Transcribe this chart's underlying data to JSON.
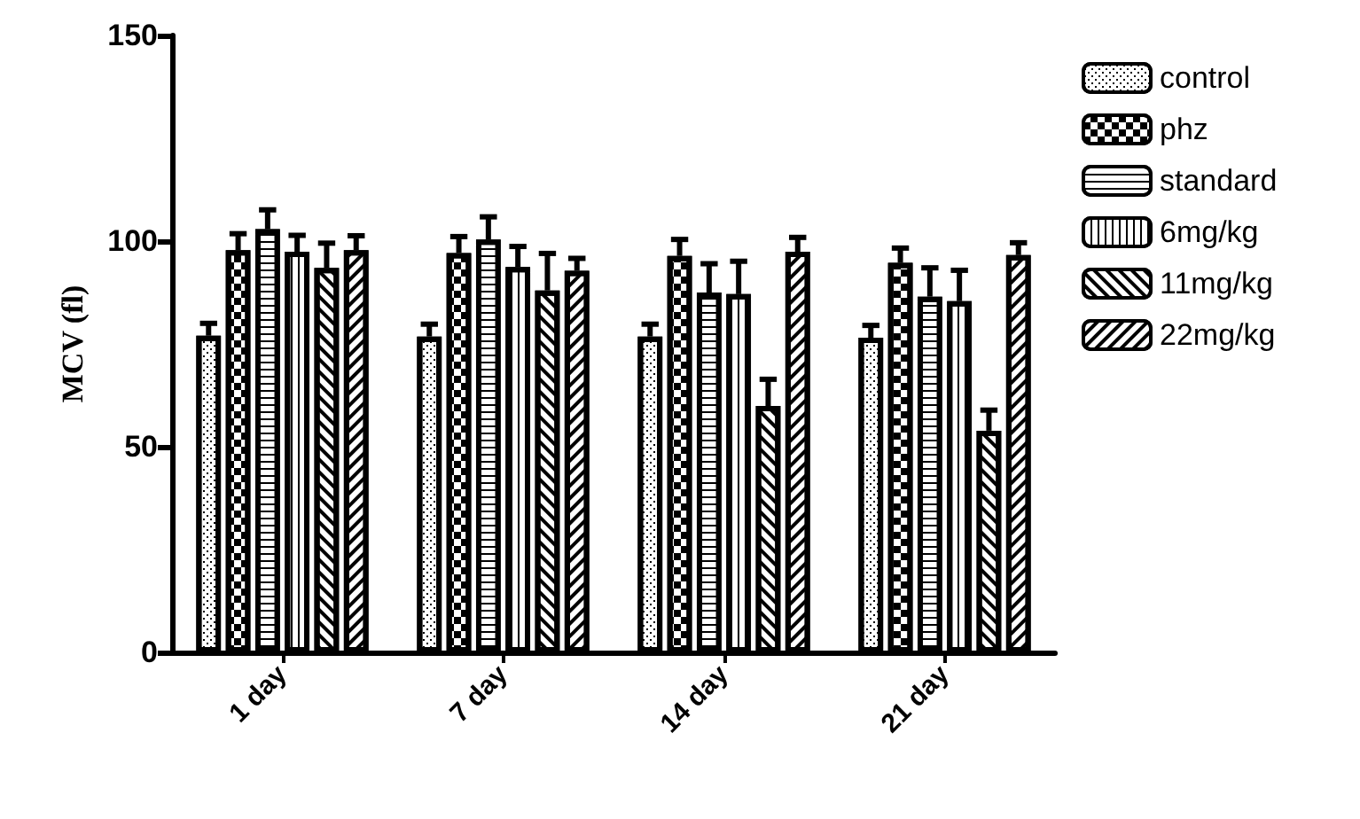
{
  "chart_data": {
    "type": "bar",
    "ylabel": "MCV (fl)",
    "categories": [
      "1 day",
      "7 day",
      "14 day",
      "21 day"
    ],
    "ylim": [
      0,
      150
    ],
    "yticks": [
      0,
      50,
      100,
      150
    ],
    "grid": false,
    "legend": "right",
    "series": [
      {
        "name": "control",
        "color": "#000000",
        "values": [
          77,
          76.8,
          76.8,
          76.5
        ],
        "errors": [
          3,
          3,
          3,
          3
        ]
      },
      {
        "name": "phz",
        "color": "#000000",
        "values": [
          97.8,
          97.1,
          96.4,
          94.7
        ],
        "errors": [
          4,
          4,
          4,
          3.6
        ]
      },
      {
        "name": "standard",
        "color": "#000000",
        "values": [
          102.9,
          100.4,
          87.5,
          86.5
        ],
        "errors": [
          4.7,
          5.5,
          7,
          7
        ]
      },
      {
        "name": "6mg/kg",
        "color": "#000000",
        "values": [
          97.4,
          93.7,
          87.1,
          85.4
        ],
        "errors": [
          4,
          5,
          8,
          7.5
        ]
      },
      {
        "name": "11mg/kg",
        "color": "#000000",
        "values": [
          93.5,
          88,
          59.9,
          53.9
        ],
        "errors": [
          6,
          9,
          6.5,
          5
        ]
      },
      {
        "name": "22mg/kg",
        "color": "#000000",
        "values": [
          97.8,
          92.8,
          97.4,
          96.6
        ],
        "errors": [
          3.5,
          3,
          3.5,
          3
        ]
      }
    ]
  }
}
